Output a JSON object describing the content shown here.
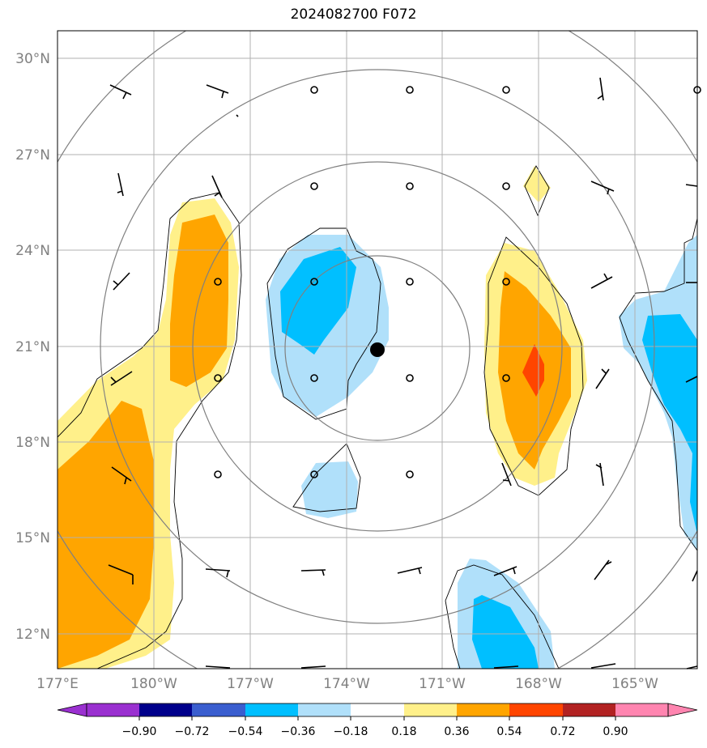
{
  "title": "2024082700 F072",
  "map": {
    "lat_labels": [
      "30°N",
      "27°N",
      "24°N",
      "21°N",
      "18°N",
      "15°N",
      "12°N"
    ],
    "lon_labels": [
      "177°E",
      "180°W",
      "177°W",
      "174°W",
      "171°W",
      "168°W",
      "165°W"
    ],
    "center_marker": {
      "lon": -173.1,
      "lat": 20.9
    },
    "ring_count": 4
  },
  "colorbar": {
    "ticks": [
      "−0.90",
      "−0.72",
      "−0.54",
      "−0.36",
      "−0.18",
      "0.18",
      "0.36",
      "0.54",
      "0.72",
      "0.90"
    ],
    "colors": [
      "#9a30d0",
      "#00008b",
      "#3a5ecf",
      "#00bfff",
      "#b0e0fa",
      "#ffffff",
      "#fff08a",
      "#ffa500",
      "#ff4500",
      "#b22222",
      "#ff85b0"
    ]
  },
  "colors": {
    "neg_light": "#b0e0fa",
    "neg_mid": "#00bfff",
    "pos_light": "#fff08a",
    "pos_mid": "#ffa500",
    "pos_strong": "#ff4500",
    "grid": "#b0b0b0",
    "ring": "#808080",
    "axis_label": "#808080"
  }
}
